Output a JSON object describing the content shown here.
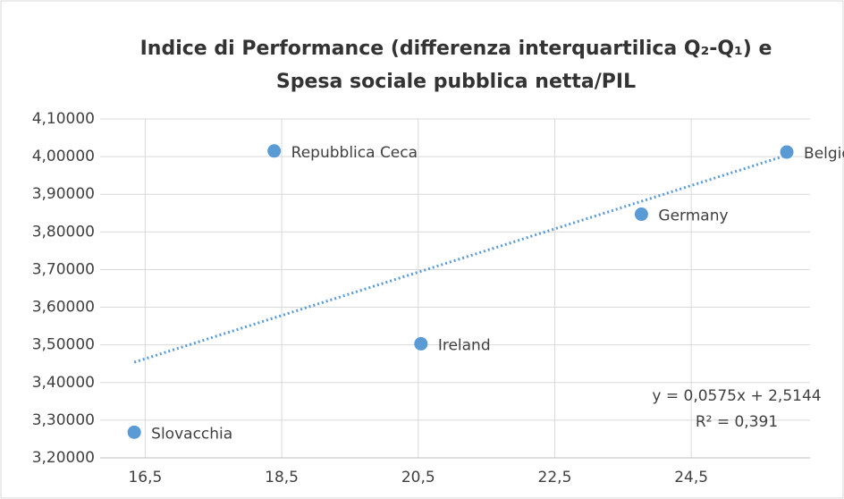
{
  "chart_data": {
    "type": "scatter",
    "title": [
      "Indice di Performance (differenza interquartilica Q₂-Q₁) e",
      "Spesa sociale pubblica netta/PIL"
    ],
    "series": [
      {
        "color": "#5b9bd5",
        "labels": [
          "Slovacchia",
          "Repubblica Ceca",
          "Ireland",
          "Germany",
          "Belgio"
        ],
        "x": [
          16.34,
          18.39,
          20.54,
          23.77,
          25.9
        ],
        "values": [
          3.268,
          4.015,
          3.503,
          3.847,
          4.012
        ]
      }
    ],
    "trendline": {
      "slope": 0.0575,
      "intercept": 2.5144,
      "equation": "y = 0,0575x + 2,5144",
      "r2": "R² = 0,391"
    },
    "xlim": [
      15.84,
      26.24
    ],
    "xticks": [
      {
        "value": 16.5,
        "label": "16,5"
      },
      {
        "value": 18.5,
        "label": "18,5"
      },
      {
        "value": 20.5,
        "label": "20,5"
      },
      {
        "value": 22.5,
        "label": "22,5"
      },
      {
        "value": 24.5,
        "label": "24,5"
      }
    ],
    "ylim": [
      3.2,
      4.1
    ],
    "yticks": [
      {
        "value": 3.2,
        "label": "3,20000"
      },
      {
        "value": 3.3,
        "label": "3,30000"
      },
      {
        "value": 3.4,
        "label": "3,40000"
      },
      {
        "value": 3.5,
        "label": "3,50000"
      },
      {
        "value": 3.6,
        "label": "3,60000"
      },
      {
        "value": 3.7,
        "label": "3,70000"
      },
      {
        "value": 3.8,
        "label": "3,80000"
      },
      {
        "value": 3.9,
        "label": "3,90000"
      },
      {
        "value": 4.0,
        "label": "4,00000"
      },
      {
        "value": 4.1,
        "label": "4,10000"
      }
    ],
    "grid": true
  }
}
